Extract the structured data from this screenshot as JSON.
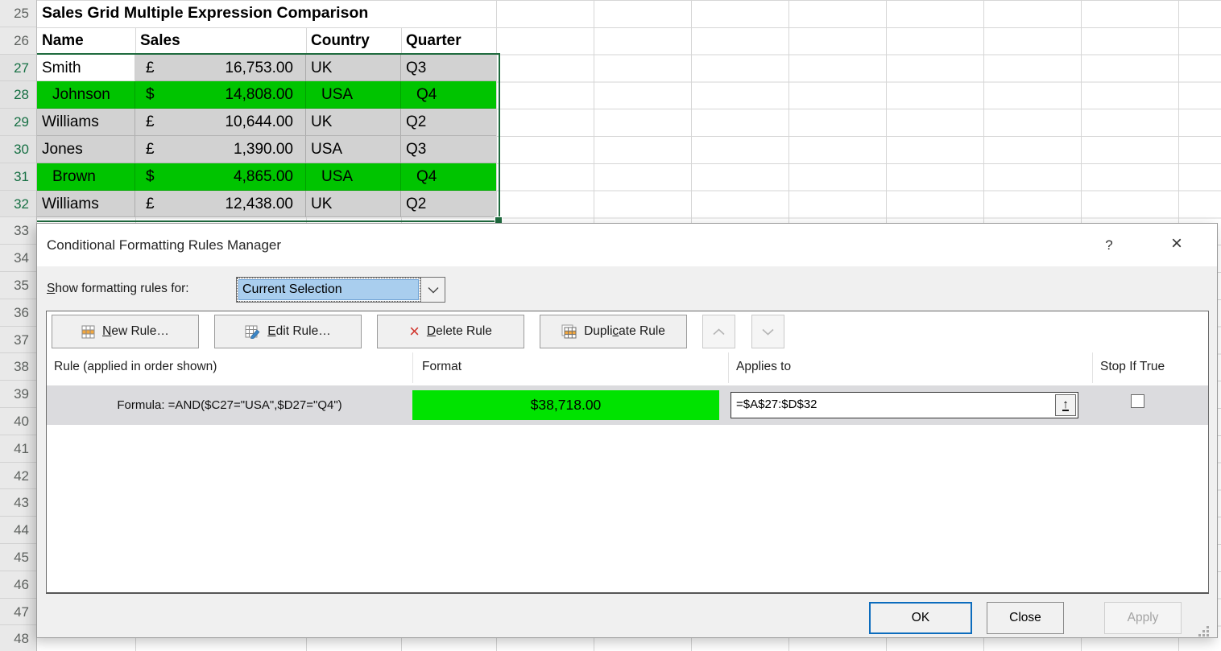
{
  "sheet": {
    "title": "Sales Grid Multiple Expression Comparison",
    "columns": [
      "Name",
      "Sales",
      "Country",
      "Quarter"
    ],
    "rows": [
      {
        "number": "27",
        "name": "Smith",
        "currency": "£",
        "amount": "16,753.00",
        "country": "UK",
        "quarter": "Q3",
        "fill": "gray",
        "active": true
      },
      {
        "number": "28",
        "name": "Johnson",
        "currency": "$",
        "amount": "14,808.00",
        "country": "USA",
        "quarter": "Q4",
        "fill": "green",
        "active": false
      },
      {
        "number": "29",
        "name": "Williams",
        "currency": "£",
        "amount": "10,644.00",
        "country": "UK",
        "quarter": "Q2",
        "fill": "gray",
        "active": false
      },
      {
        "number": "30",
        "name": "Jones",
        "currency": "£",
        "amount": "1,390.00",
        "country": "USA",
        "quarter": "Q3",
        "fill": "gray",
        "active": false
      },
      {
        "number": "31",
        "name": "Brown",
        "currency": "$",
        "amount": "4,865.00",
        "country": "USA",
        "quarter": "Q4",
        "fill": "green",
        "active": false
      },
      {
        "number": "32",
        "name": "Williams",
        "currency": "£",
        "amount": "12,438.00",
        "country": "UK",
        "quarter": "Q2",
        "fill": "gray",
        "active": false
      }
    ],
    "row_numbers": [
      "25",
      "26",
      "27",
      "28",
      "29",
      "30",
      "31",
      "32",
      "33",
      "34",
      "35",
      "36",
      "37",
      "38",
      "39",
      "40",
      "41",
      "42",
      "43",
      "44",
      "45",
      "46",
      "47",
      "48"
    ],
    "selection": {
      "from": 27,
      "to": 32
    }
  },
  "dialog": {
    "title": "Conditional Formatting Rules Manager",
    "titlebar": {
      "help": "?",
      "close": "×"
    },
    "show_rules": {
      "key": "S",
      "rest": "how formatting rules for:",
      "value": "Current Selection"
    },
    "toolbar": {
      "new_rule": {
        "pre": "",
        "key": "N",
        "rest": "ew Rule…"
      },
      "edit_rule": {
        "pre": "",
        "key": "E",
        "rest": "dit Rule…"
      },
      "delete_rule": {
        "pre": "",
        "key": "D",
        "rest": "elete Rule"
      },
      "duplicate_rule": {
        "pre": "Dupli",
        "key": "c",
        "rest": "ate Rule"
      }
    },
    "list": {
      "headers": {
        "rule": "Rule (applied in order shown)",
        "format": "Format",
        "applies": "Applies to",
        "stop": "Stop If True"
      },
      "rule": {
        "description": "Formula: =AND($C27=\"USA\",$D27=\"Q4\")",
        "format_preview": "$38,718.00",
        "applies_to": "=$A$27:$D$32",
        "stop_if_true": false
      }
    },
    "footer": {
      "ok": "OK",
      "close": "Close",
      "apply": "Apply",
      "apply_enabled": false
    },
    "icons": {
      "delete_x": "×",
      "collapse_dialog": "↑"
    }
  },
  "colors": {
    "conditional_green": "#00c400",
    "format_preview_green": "#00e300",
    "selection_fill": "#d2d2d2",
    "selection_border": "#1f6b3e",
    "default_button_border": "#0c6cbd",
    "combo_highlight": "#a9ceee",
    "row_header_selected_text": "#177044"
  },
  "icon_names": [
    "table-grid-icon",
    "table-pencil-icon",
    "red-x-icon",
    "double-table-icon",
    "chevron-up-icon",
    "chevron-down-icon",
    "up-arrow-bar-icon",
    "resize-grip-icon",
    "help-icon",
    "close-icon"
  ]
}
